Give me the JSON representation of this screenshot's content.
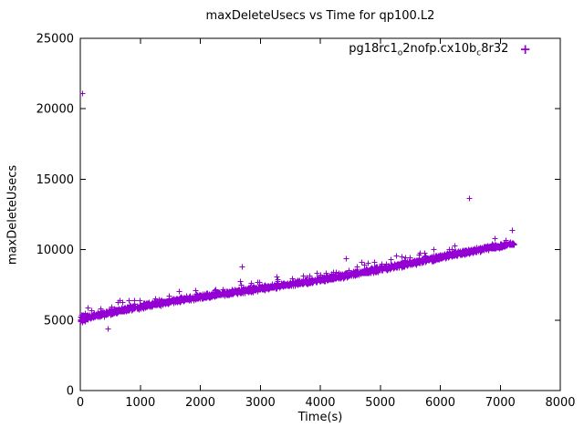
{
  "chart_data": {
    "type": "scatter",
    "title": "maxDeleteUsecs vs Time for qp100.L2",
    "xlabel": "Time(s)",
    "ylabel": "maxDeleteUsecs",
    "xlim": [
      0,
      8000
    ],
    "ylim": [
      0,
      25000
    ],
    "xticks": [
      0,
      1000,
      2000,
      3000,
      4000,
      5000,
      6000,
      7000,
      8000
    ],
    "yticks": [
      0,
      5000,
      10000,
      15000,
      20000,
      25000
    ],
    "grid": false,
    "background": "#ffffff",
    "axis_color": "#000000",
    "legend": {
      "position": "top-right-inside",
      "marker": "plus",
      "marker_glyph": "+",
      "color": "#9400d3",
      "label_plain": "pg18rc1_o2nofp.cx10b_c8r32",
      "label_segments": [
        {
          "t": "pg18rc1",
          "sub": false
        },
        {
          "t": "o",
          "sub": true
        },
        {
          "t": "2nofp.cx10b",
          "sub": false
        },
        {
          "t": "c",
          "sub": true
        },
        {
          "t": "8r32",
          "sub": false
        }
      ]
    },
    "series": [
      {
        "name": "pg18rc1_o2nofp.cx10b_c8r32",
        "marker": "plus",
        "color": "#9400d3",
        "trend": {
          "model": "linear-with-noise",
          "x_start": 0,
          "x_end": 7250,
          "y_at_x_start": 5150,
          "y_at_x_end": 10350,
          "wiggle_amplitude": 120,
          "wiggle_period": 5650,
          "noise": 230,
          "spike_prob": 0.03,
          "spike_max": 650,
          "count": 3200,
          "seed": 1337
        },
        "outliers": [
          [
            30,
            21100
          ],
          [
            460,
            4420
          ],
          [
            6480,
            13660
          ],
          [
            7190,
            11420
          ],
          [
            2690,
            8780
          ],
          [
            4420,
            9420
          ],
          [
            5260,
            9560
          ]
        ]
      }
    ]
  }
}
